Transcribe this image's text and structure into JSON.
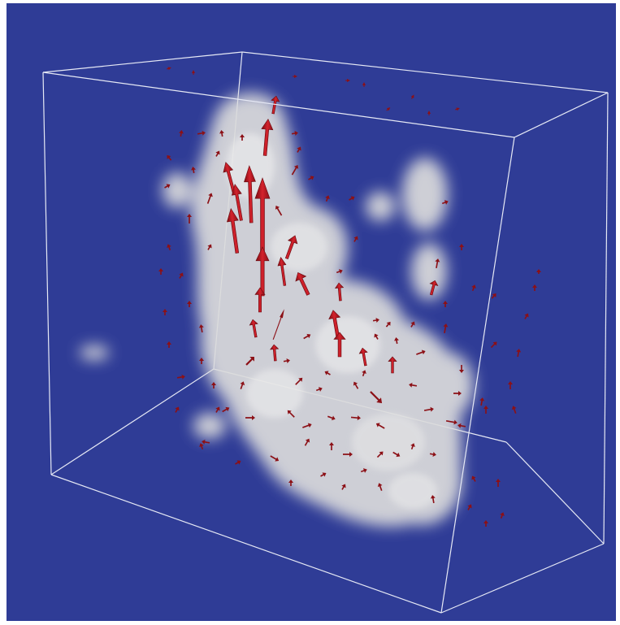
{
  "scene": {
    "background_color": "#2f3c96",
    "outer_border_color": "#ffffff",
    "box_edge_color": "#e6e9f5",
    "cloud_color": "#dcdcdc",
    "arrow_color_large": "#c41a22",
    "arrow_color_small": "#8c1016"
  }
}
